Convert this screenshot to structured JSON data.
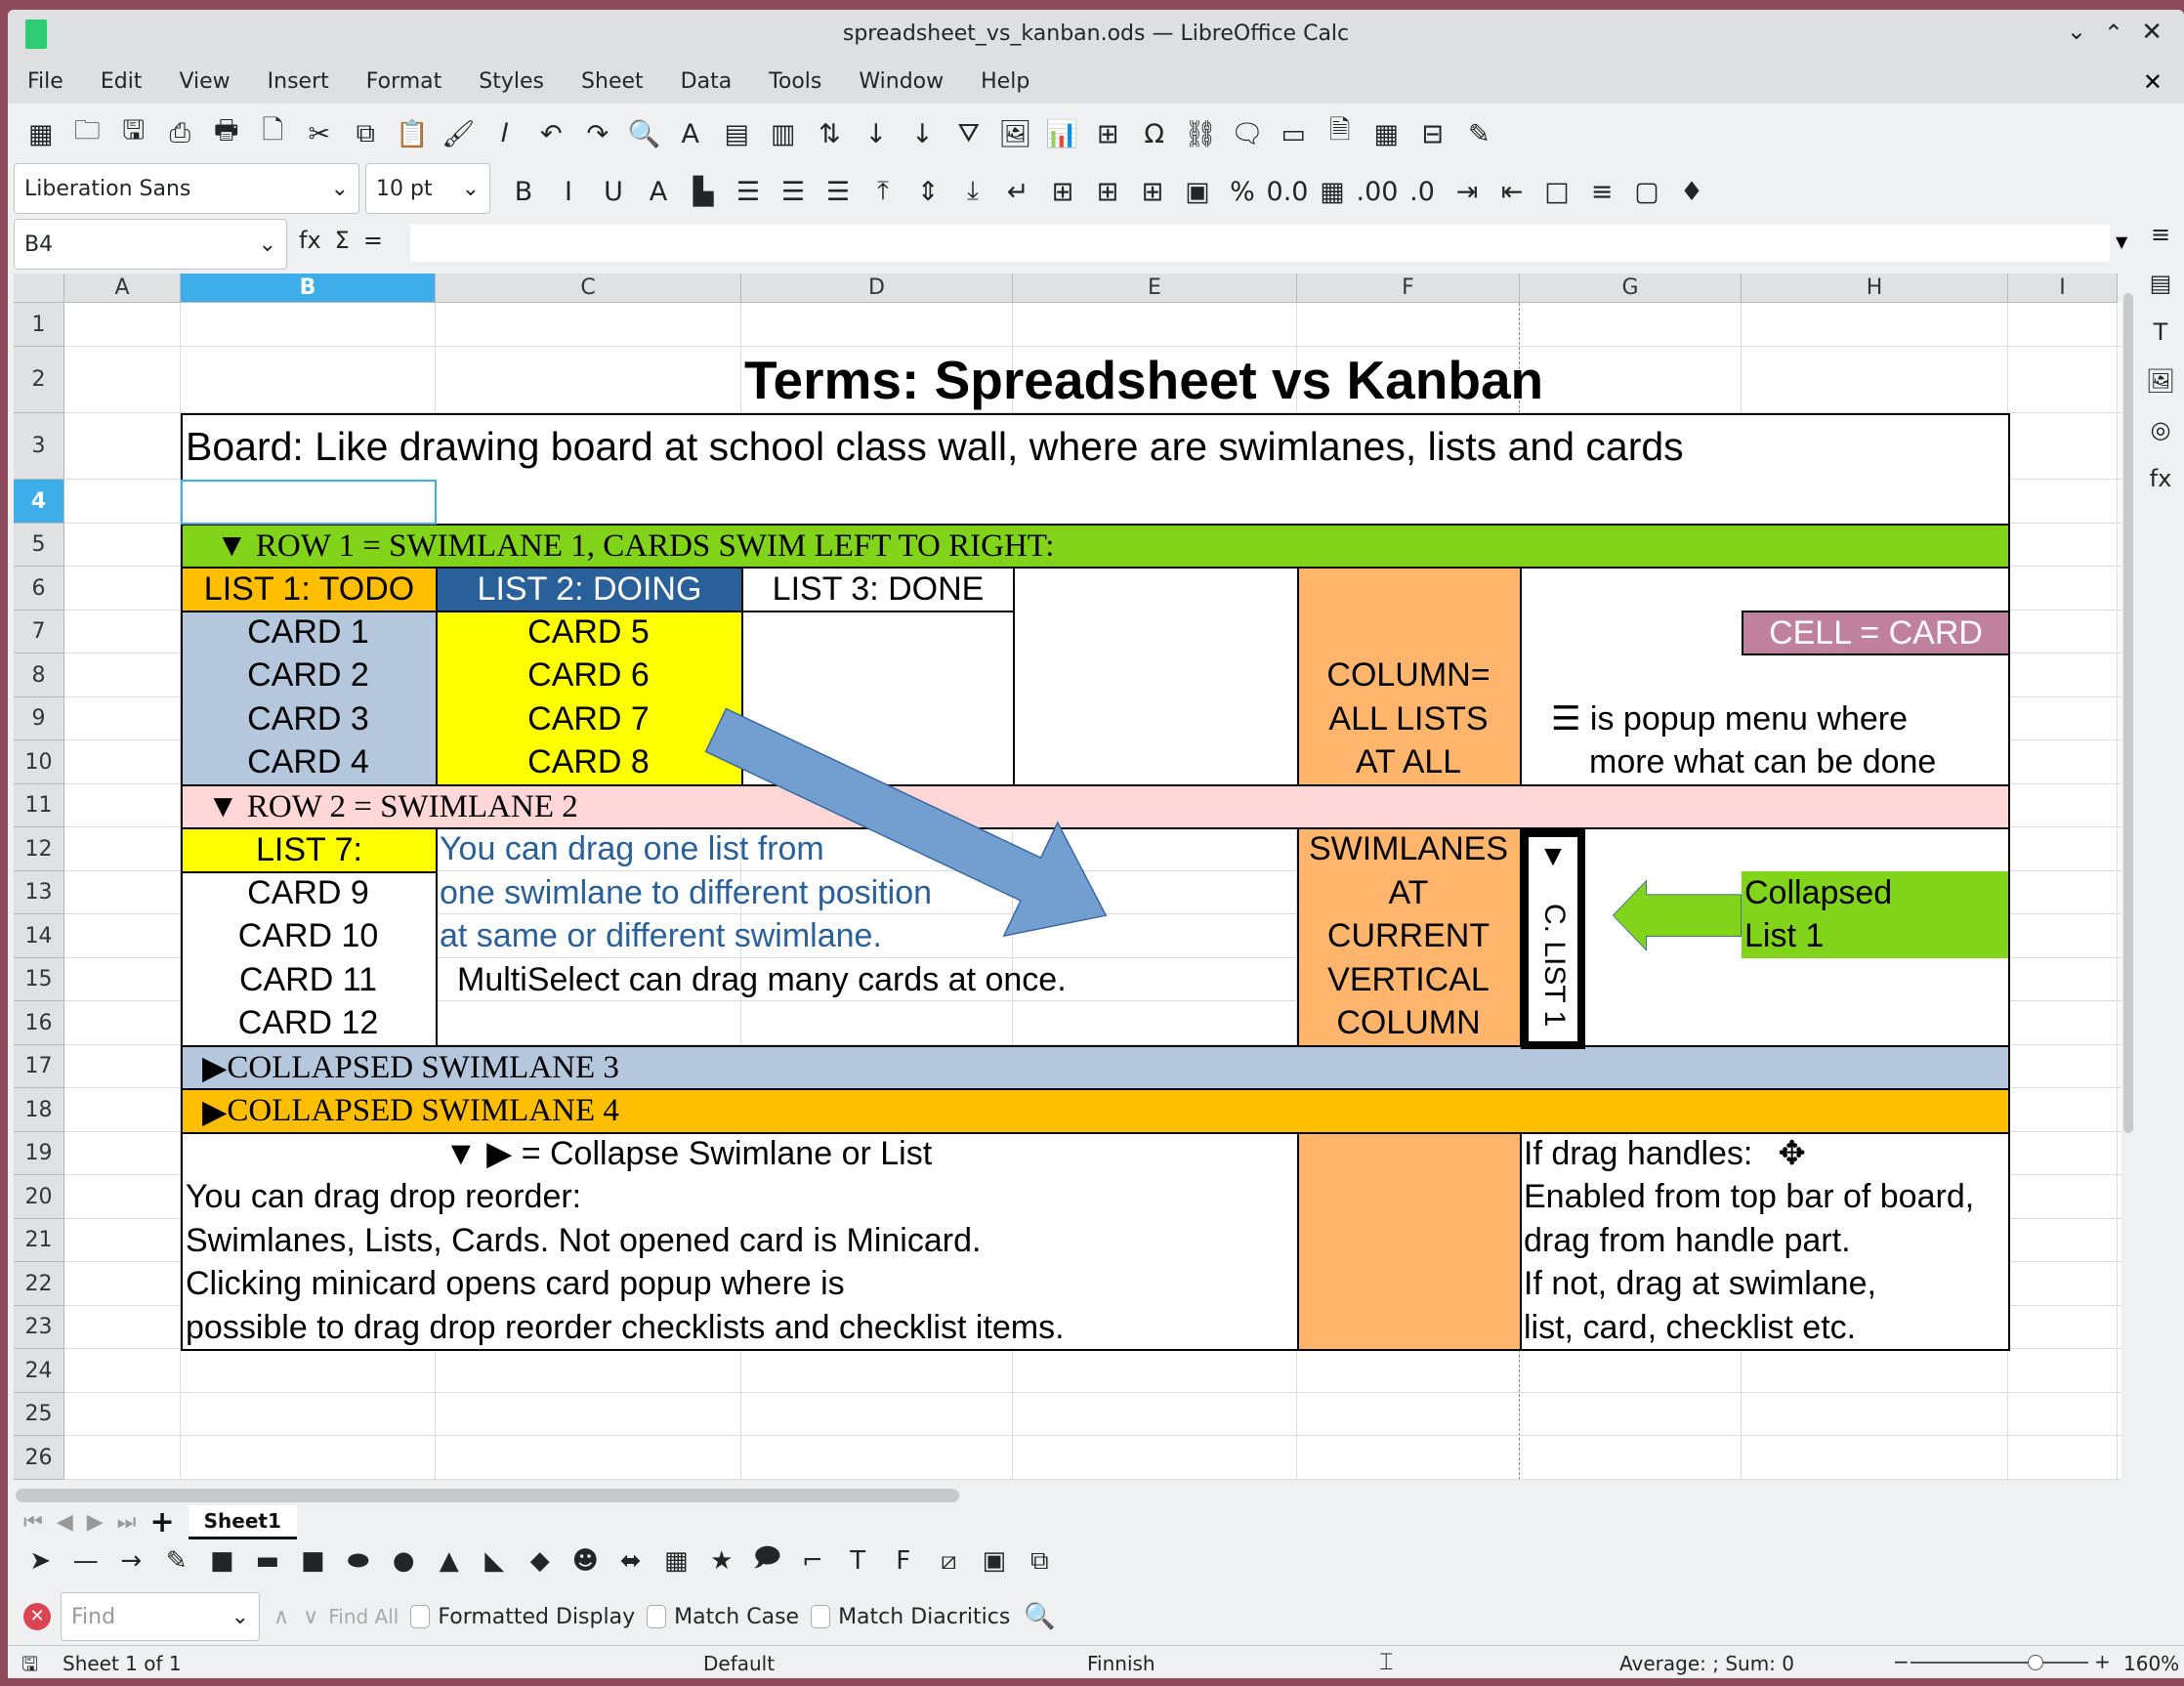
{
  "window": {
    "title": "spreadsheet_vs_kanban.ods — LibreOffice Calc"
  },
  "menu": [
    "File",
    "Edit",
    "View",
    "Insert",
    "Format",
    "Styles",
    "Sheet",
    "Data",
    "Tools",
    "Window",
    "Help"
  ],
  "toolbar_standard": [
    {
      "name": "insert-table-icon",
      "g": "▦"
    },
    {
      "name": "open-icon",
      "g": "🗀"
    },
    {
      "name": "save-icon",
      "g": "🖫"
    },
    {
      "name": "export-pdf-icon",
      "g": "⎙"
    },
    {
      "name": "print-icon",
      "g": "🖶"
    },
    {
      "name": "print-preview-icon",
      "g": "🗋"
    },
    {
      "name": "cut-icon",
      "g": "✂"
    },
    {
      "name": "copy-icon",
      "g": "⧉"
    },
    {
      "name": "paste-icon",
      "g": "📋"
    },
    {
      "name": "clone-formatting-icon",
      "g": "🖌"
    },
    {
      "name": "clear-formatting-icon",
      "g": "𝐼"
    },
    {
      "name": "undo-icon",
      "g": "↶"
    },
    {
      "name": "redo-icon",
      "g": "↷"
    },
    {
      "name": "find-replace-icon",
      "g": "🔍"
    },
    {
      "name": "spelling-icon",
      "g": "A"
    },
    {
      "name": "row-icon",
      "g": "▤"
    },
    {
      "name": "column-icon",
      "g": "▥"
    },
    {
      "name": "sort-icon",
      "g": "⇅"
    },
    {
      "name": "sort-ascending-icon",
      "g": "↓"
    },
    {
      "name": "sort-descending-icon",
      "g": "↓"
    },
    {
      "name": "autofilter-icon",
      "g": "⛛"
    },
    {
      "name": "insert-image-icon",
      "g": "🖼"
    },
    {
      "name": "insert-chart-icon",
      "g": "📊"
    },
    {
      "name": "pivot-table-icon",
      "g": "⊞"
    },
    {
      "name": "special-character-icon",
      "g": "Ω"
    },
    {
      "name": "hyperlink-icon",
      "g": "⛓"
    },
    {
      "name": "comment-icon",
      "g": "🗨"
    },
    {
      "name": "header-footer-icon",
      "g": "▭"
    },
    {
      "name": "print-area-icon",
      "g": "🗎"
    },
    {
      "name": "freeze-icon",
      "g": "▦"
    },
    {
      "name": "split-window-icon",
      "g": "⊟"
    },
    {
      "name": "show-draw-functions-icon",
      "g": "✎"
    }
  ],
  "toolbar_format": {
    "font_name": "Liberation Sans",
    "font_size": "10 pt",
    "icons": [
      {
        "name": "bold-icon",
        "g": "B"
      },
      {
        "name": "italic-icon",
        "g": "I"
      },
      {
        "name": "underline-icon",
        "g": "U"
      },
      {
        "name": "font-color-icon",
        "g": "A"
      },
      {
        "name": "highlight-color-icon",
        "g": "▙"
      },
      {
        "name": "align-left-icon",
        "g": "☰"
      },
      {
        "name": "align-center-icon",
        "g": "☰"
      },
      {
        "name": "align-right-icon",
        "g": "☰"
      },
      {
        "name": "align-top-icon",
        "g": "⤒"
      },
      {
        "name": "center-vertically-icon",
        "g": "⇕"
      },
      {
        "name": "align-bottom-icon",
        "g": "⤓"
      },
      {
        "name": "wrap-text-icon",
        "g": "↵"
      },
      {
        "name": "merge-center-icon",
        "g": "⊞"
      },
      {
        "name": "merge-cells-icon",
        "g": "⊞"
      },
      {
        "name": "unmerge-cells-icon",
        "g": "⊞"
      },
      {
        "name": "currency-icon",
        "g": "▣"
      },
      {
        "name": "percent-icon",
        "g": "%"
      },
      {
        "name": "number-format-icon",
        "g": "0.0"
      },
      {
        "name": "date-icon",
        "g": "▦"
      },
      {
        "name": "add-decimal-icon",
        "g": ".00"
      },
      {
        "name": "delete-decimal-icon",
        "g": ".0"
      },
      {
        "name": "increase-indent-icon",
        "g": "⇥"
      },
      {
        "name": "decrease-indent-icon",
        "g": "⇤"
      },
      {
        "name": "borders-icon",
        "g": "□"
      },
      {
        "name": "border-style-icon",
        "g": "≡"
      },
      {
        "name": "border-color-icon",
        "g": "▢"
      },
      {
        "name": "conditional-format-icon",
        "g": "♦"
      }
    ]
  },
  "formula_bar": {
    "name_box": "B4",
    "function_icon": "fx",
    "sum_icon": "Σ",
    "equals": "=",
    "value": ""
  },
  "columns": [
    "A",
    "B",
    "C",
    "D",
    "E",
    "F",
    "G",
    "H",
    "I"
  ],
  "rows": [
    "1",
    "2",
    "3",
    "4",
    "5",
    "6",
    "7",
    "8",
    "9",
    "10",
    "11",
    "12",
    "13",
    "14",
    "15",
    "16",
    "17",
    "18",
    "19",
    "20",
    "21",
    "22",
    "23",
    "24",
    "25",
    "26"
  ],
  "selected_cell": {
    "column": "B",
    "row": "4"
  },
  "sheet": {
    "title": "Terms: Spreadsheet vs Kanban",
    "board": "Board: Like drawing board at school class wall, where are swimlanes, lists and cards",
    "swimlane1": "▼  ROW 1 = SWIMLANE 1, CARDS SWIM LEFT TO RIGHT:",
    "list1": "LIST 1: TODO",
    "list2": "LIST 2: DOING",
    "list3": "LIST 3: DONE",
    "list1_cards": [
      "CARD 1",
      "CARD 2",
      "CARD 3",
      "CARD 4"
    ],
    "list2_cards": [
      "CARD 5",
      "CARD 6",
      "CARD 7",
      "CARD 8"
    ],
    "column_note": [
      "COLUMN=",
      "ALL LISTS",
      "AT ALL"
    ],
    "cell_card": "CELL = CARD",
    "popup_note": [
      "☰ is popup menu where",
      "more what can be done"
    ],
    "swimlane2": "▼  ROW 2 = SWIMLANE 2",
    "list7": "LIST 7:",
    "list7_cards": [
      "CARD 9",
      "CARD 10",
      "CARD 11",
      "CARD 12"
    ],
    "drag_note": [
      "You can drag one list from",
      "one swimlane to different position",
      "at same or different swimlane."
    ],
    "multiselect": "MultiSelect can drag many cards at once.",
    "swimlanes_note": [
      "SWIMLANES",
      "AT",
      "CURRENT",
      "VERTICAL",
      "COLUMN"
    ],
    "collapsed_list_marker": "▼",
    "collapsed_list_label": "C. LIST 1",
    "collapsed_label": [
      "Collapsed",
      "List 1"
    ],
    "swimlane3": "COLLAPSED SWIMLANE 3",
    "swimlane4": "COLLAPSED SWIMLANE 4",
    "collapse_note": "▼ ▶ = Collapse Swimlane or List",
    "reorder_note": [
      "You can drag drop reorder:",
      "Swimlanes, Lists, Cards. Not opened card is Minicard.",
      "Clicking minicard opens card popup where is",
      "possible to drag drop reorder checklists and checklist items."
    ],
    "handles_note": [
      "If drag handles:",
      "Enabled from top bar of board,",
      "drag from handle part.",
      "If not, drag at swimlane,",
      "list, card, checklist etc."
    ],
    "colors": {
      "green": "#81d41a",
      "orange": "#ffbf00",
      "blue_list": "#2a6099",
      "light_blue": "#b4c7dc",
      "yellow": "#ffff00",
      "light_orange": "#ffb66c",
      "pink": "#ffd7d7",
      "mauve": "#bf819e",
      "arrow_blue": "#729fcf"
    }
  },
  "sheet_tabs": {
    "active": "Sheet1"
  },
  "drawing_toolbar": [
    {
      "name": "select-icon",
      "g": "➤"
    },
    {
      "name": "line-icon",
      "g": "—"
    },
    {
      "name": "arrow-line-icon",
      "g": "→"
    },
    {
      "name": "curve-icon",
      "g": "✎"
    },
    {
      "name": "rectangle-icon",
      "g": "■"
    },
    {
      "name": "rounded-rectangle-icon",
      "g": "▬"
    },
    {
      "name": "square-icon",
      "g": "■"
    },
    {
      "name": "ellipse-icon",
      "g": "⬬"
    },
    {
      "name": "circle-icon",
      "g": "●"
    },
    {
      "name": "triangle-icon",
      "g": "▲"
    },
    {
      "name": "right-triangle-icon",
      "g": "◣"
    },
    {
      "name": "basic-shapes-icon",
      "g": "◆"
    },
    {
      "name": "symbol-shapes-icon",
      "g": "☻"
    },
    {
      "name": "block-arrows-icon",
      "g": "⬌"
    },
    {
      "name": "flowchart-icon",
      "g": "▦"
    },
    {
      "name": "stars-icon",
      "g": "★"
    },
    {
      "name": "callouts-icon",
      "g": "🗩"
    },
    {
      "name": "points-icon",
      "g": "⌐"
    },
    {
      "name": "text-box-icon",
      "g": "T"
    },
    {
      "name": "fontwork-icon",
      "g": "F"
    },
    {
      "name": "toggle-extrusion-icon",
      "g": "⧄"
    },
    {
      "name": "3d-icon",
      "g": "▣"
    },
    {
      "name": "shadow-icon",
      "g": "⧉"
    }
  ],
  "find_bar": {
    "placeholder": "Find",
    "find_all": "Find All",
    "formatted_display": "Formatted Display",
    "match_case": "Match Case",
    "match_diacritics": "Match Diacritics"
  },
  "status_bar": {
    "sheet": "Sheet 1 of 1",
    "style": "Default",
    "language": "Finnish",
    "sum": "Average: ; Sum: 0",
    "zoom": "160%",
    "zoom_level_percent": 160
  }
}
